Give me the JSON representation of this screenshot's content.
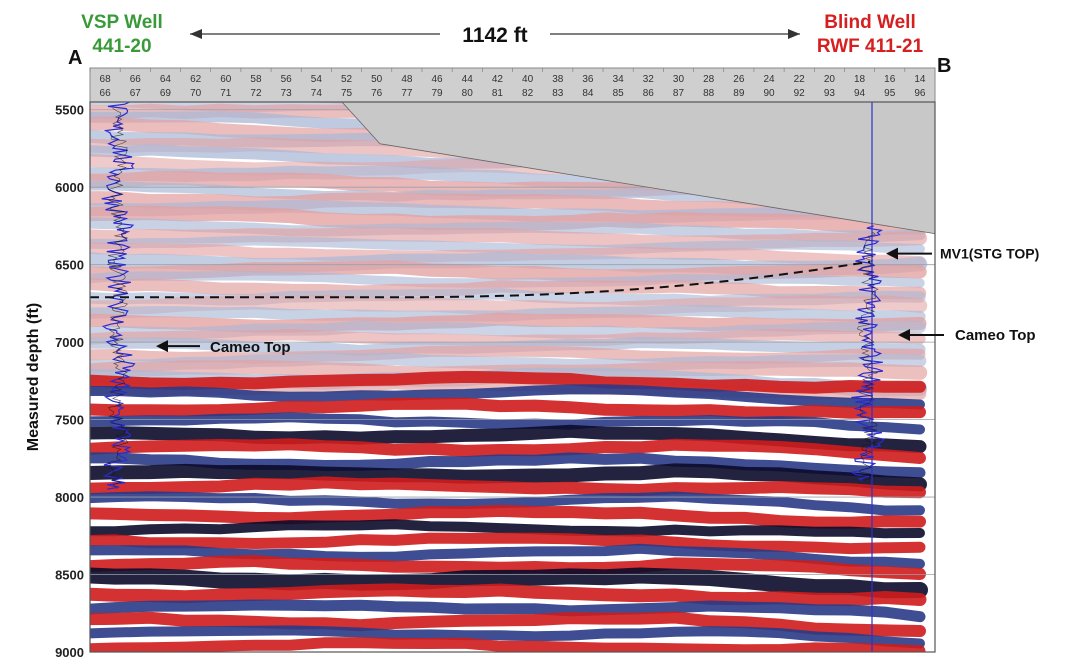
{
  "chart_data": {
    "type": "heatmap",
    "subtype": "seismic-depth-section",
    "ylabel": "Measured depth (ft)",
    "ylim": [
      5450,
      9000
    ],
    "y_ticks": [
      5500,
      6000,
      6500,
      7000,
      7500,
      8000,
      8500,
      9000
    ],
    "trace_row_upper": [
      "68",
      "66",
      "64",
      "62",
      "60",
      "58",
      "56",
      "54",
      "52",
      "50",
      "48",
      "46",
      "44",
      "42",
      "40",
      "38",
      "36",
      "34",
      "32",
      "30",
      "28",
      "26",
      "24",
      "22",
      "20",
      "18",
      "16",
      "14"
    ],
    "trace_row_lower": [
      "66",
      "67",
      "69",
      "70",
      "71",
      "72",
      "73",
      "74",
      "75",
      "76",
      "77",
      "79",
      "80",
      "81",
      "82",
      "83",
      "84",
      "85",
      "86",
      "87",
      "88",
      "89",
      "90",
      "92",
      "93",
      "94",
      "95",
      "96"
    ],
    "distance_label": "1142 ft",
    "endpoint_left": "A",
    "endpoint_right": "B",
    "left_well": {
      "name_line1": "VSP Well",
      "name_line2": "441-20",
      "color": "#3a9a3a",
      "log_top": 5450,
      "log_bottom": 7950
    },
    "right_well": {
      "name_line1": "Blind Well",
      "name_line2": "RWF 411-21",
      "color": "#d62020",
      "log_top": 6250,
      "log_bottom": 7900
    },
    "horizons": [
      {
        "label": "MV1(STG TOP)",
        "depth_left": 6710,
        "depth_right": 6480,
        "style": "dashed"
      },
      {
        "label": "Cameo Top",
        "depth": 7000,
        "side": "left"
      },
      {
        "label": "Cameo Top",
        "depth": 6980,
        "side": "right"
      }
    ],
    "mute_zone_color": "#c8c8c8",
    "log_color": "#3030cc",
    "colors": {
      "positive": "#d01818",
      "negative": "#0a0a60",
      "background": "#ffffff"
    }
  }
}
